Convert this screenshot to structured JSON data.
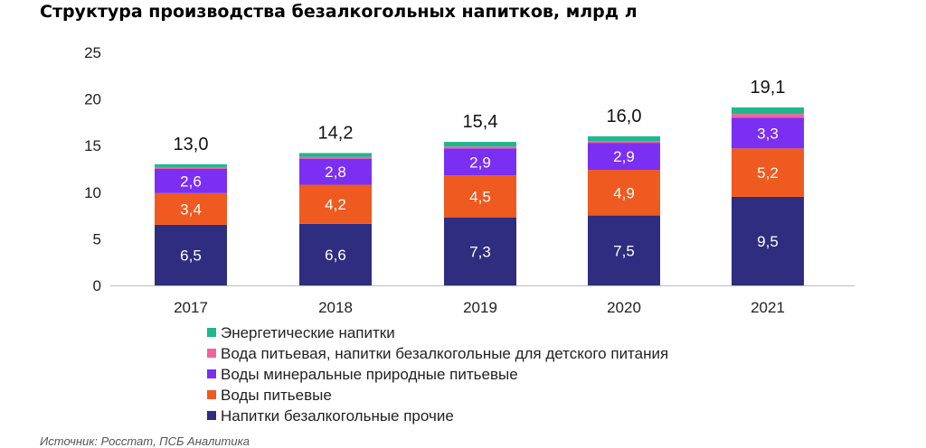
{
  "title": "Структура производства безалкогольных напитков, млрд л",
  "source": "Источник: Росстат, ПСБ Аналитика",
  "chart_data": {
    "type": "bar",
    "stacked": true,
    "title": "Структура производства безалкогольных напитков, млрд л",
    "categories": [
      "2017",
      "2018",
      "2019",
      "2020",
      "2021"
    ],
    "ylim": [
      0,
      25
    ],
    "yticks": [
      0,
      5,
      10,
      15,
      20,
      25
    ],
    "grid": false,
    "legend_placement": "bottom",
    "totals": [
      "13,0",
      "14,2",
      "15,4",
      "16,0",
      "19,1"
    ],
    "series": [
      {
        "name": "Напитки безалкогольные прочие",
        "color": "#2e2d7f",
        "values": [
          6.5,
          6.6,
          7.3,
          7.5,
          9.5
        ],
        "labels": [
          "6,5",
          "6,6",
          "7,3",
          "7,5",
          "9,5"
        ]
      },
      {
        "name": "Воды питьевые",
        "color": "#ee5a1f",
        "values": [
          3.4,
          4.2,
          4.5,
          4.9,
          5.2
        ],
        "labels": [
          "3,4",
          "4,2",
          "4,5",
          "4,9",
          "5,2"
        ]
      },
      {
        "name": "Воды минеральные природные питьевые",
        "color": "#7b2ff2",
        "values": [
          2.6,
          2.8,
          2.9,
          2.9,
          3.3
        ],
        "labels": [
          "2,6",
          "2,8",
          "2,9",
          "2,9",
          "3,3"
        ]
      },
      {
        "name": "Вода питьевая, напитки безалкогольные для детского питания",
        "color": "#f2639b",
        "values": [
          0.2,
          0.2,
          0.2,
          0.2,
          0.4
        ]
      },
      {
        "name": "Энергетические напитки",
        "color": "#1db88e",
        "values": [
          0.3,
          0.4,
          0.5,
          0.5,
          0.7
        ]
      }
    ]
  }
}
